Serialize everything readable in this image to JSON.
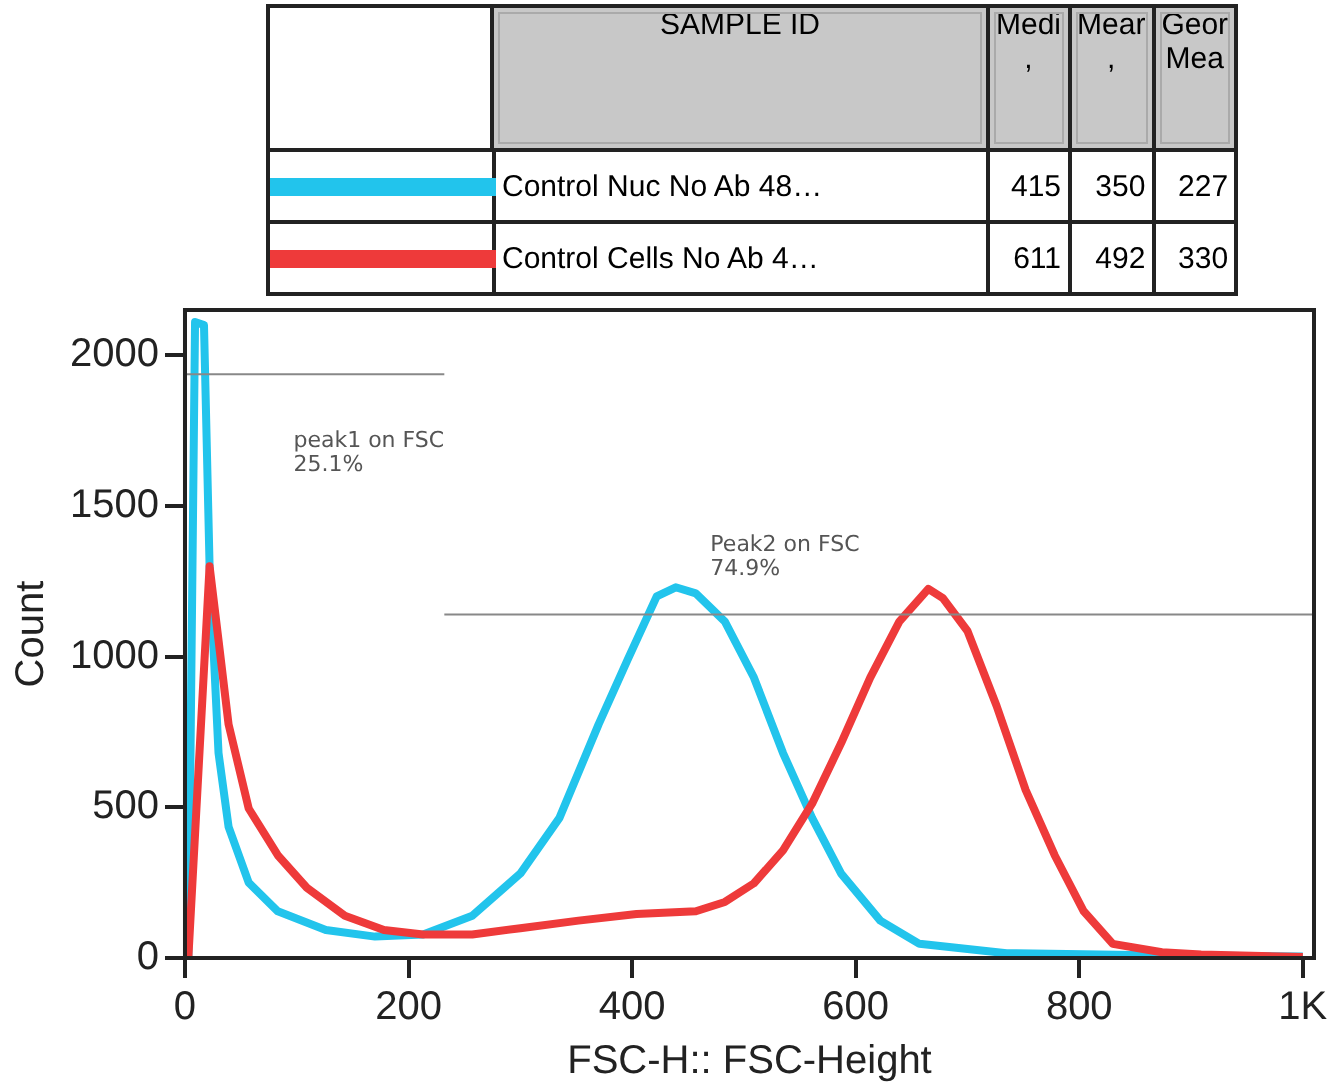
{
  "chart_data": {
    "type": "line",
    "xlabel": "FSC-H:: FSC-Height",
    "ylabel": "Count",
    "legend": "top",
    "legend_title": "SAMPLE ID",
    "xlim": [
      0,
      1010
    ],
    "ylim": [
      0,
      2150
    ],
    "xticks": [
      0,
      200,
      400,
      600,
      800,
      {
        "value": 1000,
        "label": "1K"
      }
    ],
    "yticks": [
      0,
      500,
      1000,
      1500,
      2000
    ],
    "grid": false,
    "series": [
      {
        "name": "Control Nuc No Ab 48…",
        "color": "#22c4ec",
        "x": [
          3,
          9,
          17,
          22,
          30,
          39,
          57,
          83,
          126,
          170,
          213,
          257,
          300,
          335,
          370,
          396,
          422,
          439,
          457,
          483,
          509,
          535,
          561,
          587,
          622,
          657,
          735,
          865,
          1000
        ],
        "values": [
          0,
          2110,
          2100,
          1300,
          680,
          435,
          250,
          155,
          93,
          71,
          78,
          140,
          280,
          465,
          775,
          990,
          1200,
          1230,
          1210,
          1116,
          930,
          680,
          465,
          280,
          124,
          47,
          16,
          9,
          5
        ]
      },
      {
        "name": "Control Cells No Ab 4…",
        "color": "#ee3a3a",
        "x": [
          3,
          22,
          30,
          39,
          57,
          83,
          109,
          143,
          178,
          213,
          257,
          300,
          352,
          404,
          457,
          483,
          509,
          535,
          561,
          587,
          613,
          639,
          665,
          678,
          700,
          726,
          752,
          778,
          804,
          830,
          874,
          909,
          1000
        ],
        "values": [
          0,
          1300,
          1054,
          775,
          496,
          341,
          233,
          140,
          93,
          78,
          78,
          99,
          124,
          146,
          155,
          186,
          248,
          357,
          512,
          713,
          930,
          1116,
          1225,
          1194,
          1085,
          837,
          558,
          341,
          155,
          47,
          19,
          12,
          3
        ]
      },
      {
        "type": "line",
        "color": "#888888",
        "x": [
          0,
          232
        ],
        "values": [
          1937,
          1937
        ]
      },
      {
        "type": "line",
        "color": "#888888",
        "x": [
          232,
          1010
        ],
        "values": [
          1140,
          1140
        ]
      }
    ],
    "annotations": [
      {
        "text": "peak1 on FSC\n25.1%",
        "x": 97,
        "y": 1937
      },
      {
        "text": "Peak2 on FSC\n74.9%",
        "x": 470,
        "y": 1140
      },
      "Medi\n,",
      "Mear\n,",
      "Geor\nMea",
      "415",
      "350",
      "227",
      "611",
      "492",
      "330"
    ]
  }
}
